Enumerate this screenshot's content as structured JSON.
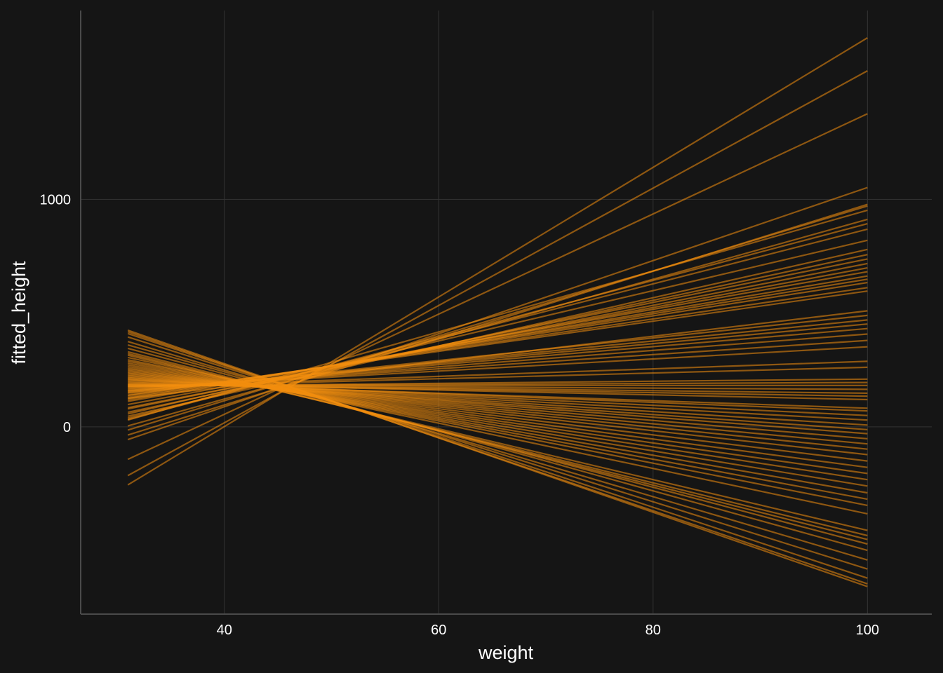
{
  "chart_data": {
    "type": "line",
    "xlabel": "weight",
    "ylabel": "fitted_height",
    "xlim": [
      26.6,
      106.0
    ],
    "ylim": [
      -823,
      1830
    ],
    "x_ticks": [
      {
        "value": 40,
        "label": "40"
      },
      {
        "value": 60,
        "label": "60"
      },
      {
        "value": 80,
        "label": "80"
      },
      {
        "value": 100,
        "label": "100"
      }
    ],
    "y_ticks": [
      {
        "value": 0,
        "label": "0"
      },
      {
        "value": 1000,
        "label": "1000"
      }
    ],
    "grid": true,
    "legend": "none",
    "colors": {
      "background": "#151515",
      "line": "#f28e0e",
      "grid": "#333333",
      "axis": "#4a4a4a",
      "text": "#ffffff"
    },
    "line_opacity": 0.55,
    "series_x": [
      31,
      100
    ],
    "series": [
      {
        "values": [
          -255,
          1710
        ]
      },
      {
        "values": [
          -214,
          1565
        ]
      },
      {
        "values": [
          -143,
          1376
        ]
      },
      {
        "values": [
          -56,
          1052
        ]
      },
      {
        "values": [
          -36,
          978
        ]
      },
      {
        "values": [
          -14,
          971
        ]
      },
      {
        "values": [
          30,
          952
        ]
      },
      {
        "values": [
          4,
          912
        ]
      },
      {
        "values": [
          33,
          893
        ]
      },
      {
        "values": [
          39,
          869
        ]
      },
      {
        "values": [
          57,
          820
        ]
      },
      {
        "values": [
          47,
          780
        ]
      },
      {
        "values": [
          64,
          757
        ]
      },
      {
        "values": [
          79,
          738
        ]
      },
      {
        "values": [
          84,
          718
        ]
      },
      {
        "values": [
          98,
          699
        ]
      },
      {
        "values": [
          112,
          682
        ]
      },
      {
        "values": [
          118,
          663
        ]
      },
      {
        "values": [
          125,
          649
        ]
      },
      {
        "values": [
          130,
          634
        ]
      },
      {
        "values": [
          137,
          612
        ]
      },
      {
        "values": [
          140,
          597
        ]
      },
      {
        "values": [
          125,
          510
        ]
      },
      {
        "values": [
          148,
          490
        ]
      },
      {
        "values": [
          151,
          470
        ]
      },
      {
        "values": [
          155,
          452
        ]
      },
      {
        "values": [
          158,
          432
        ]
      },
      {
        "values": [
          160,
          408
        ]
      },
      {
        "values": [
          165,
          380
        ]
      },
      {
        "values": [
          168,
          352
        ]
      },
      {
        "values": [
          174,
          288
        ]
      },
      {
        "values": [
          175,
          262
        ]
      },
      {
        "values": [
          178,
          210
        ]
      },
      {
        "values": [
          180,
          195
        ]
      },
      {
        "values": [
          182,
          182
        ]
      },
      {
        "values": [
          184,
          165
        ]
      },
      {
        "values": [
          186,
          148
        ]
      },
      {
        "values": [
          188,
          135
        ]
      },
      {
        "values": [
          192,
          120
        ]
      },
      {
        "values": [
          196,
          82
        ]
      },
      {
        "values": [
          200,
          70
        ]
      },
      {
        "values": [
          205,
          50
        ]
      },
      {
        "values": [
          208,
          30
        ]
      },
      {
        "values": [
          212,
          8
        ]
      },
      {
        "values": [
          216,
          -12
        ]
      },
      {
        "values": [
          220,
          -30
        ]
      },
      {
        "values": [
          225,
          -52
        ]
      },
      {
        "values": [
          230,
          -75
        ]
      },
      {
        "values": [
          235,
          -98
        ]
      },
      {
        "values": [
          240,
          -122
        ]
      },
      {
        "values": [
          246,
          -150
        ]
      },
      {
        "values": [
          252,
          -178
        ]
      },
      {
        "values": [
          258,
          -205
        ]
      },
      {
        "values": [
          265,
          -232
        ]
      },
      {
        "values": [
          272,
          -260
        ]
      },
      {
        "values": [
          280,
          -290
        ]
      },
      {
        "values": [
          288,
          -318
        ]
      },
      {
        "values": [
          295,
          -345
        ]
      },
      {
        "values": [
          305,
          -382
        ]
      },
      {
        "values": [
          315,
          -455
        ]
      },
      {
        "values": [
          322,
          -478
        ]
      },
      {
        "values": [
          330,
          -495
        ]
      },
      {
        "values": [
          345,
          -515
        ]
      },
      {
        "values": [
          360,
          -543
        ]
      },
      {
        "values": [
          375,
          -585
        ]
      },
      {
        "values": [
          395,
          -625
        ]
      },
      {
        "values": [
          410,
          -665
        ]
      },
      {
        "values": [
          418,
          -690
        ]
      },
      {
        "values": [
          425,
          -702
        ]
      }
    ]
  }
}
